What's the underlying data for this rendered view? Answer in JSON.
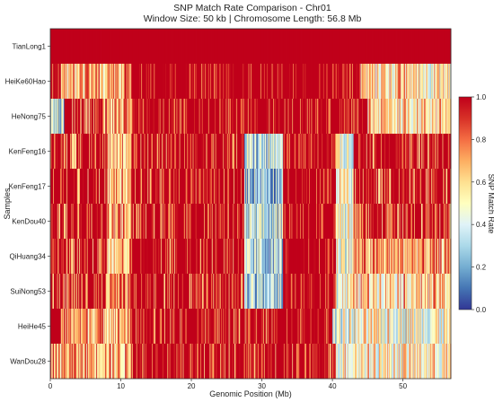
{
  "chart_data": {
    "type": "heatmap",
    "title": "SNP Match Rate Comparison - Chr01",
    "subtitle": "Window Size: 50 kb | Chromosome Length: 56.8 Mb",
    "xlabel": "Genomic Position (Mb)",
    "ylabel": "Samples",
    "xlim": [
      0,
      56.8
    ],
    "xticks": [
      "0",
      "10",
      "20",
      "30",
      "40",
      "50"
    ],
    "x_tick_values": [
      0,
      10,
      20,
      30,
      40,
      50
    ],
    "samples": [
      "TianLong1",
      "HeiKe60Hao",
      "HeNong75",
      "KenFeng16",
      "KenFeng17",
      "KenDou40",
      "QiHuang34",
      "SuiNong53",
      "HeiHe45",
      "WanDou28"
    ],
    "colorbar": {
      "label": "SNP Match Rate",
      "range": [
        0.0,
        1.0
      ],
      "ticks": [
        "0.0",
        "0.2",
        "0.4",
        "0.6",
        "0.8",
        "1.0"
      ],
      "tick_values": [
        0.0,
        0.2,
        0.4,
        0.6,
        0.8,
        1.0
      ],
      "colormap": [
        "#313695",
        "#4575b4",
        "#74add1",
        "#abd9e9",
        "#e0f3f8",
        "#ffffbf",
        "#fee090",
        "#fdae61",
        "#f46d43",
        "#d73027",
        "#c0001a"
      ]
    },
    "segments": [
      {
        "sample": "TianLong1",
        "regions": [
          {
            "start": 0,
            "end": 56.8,
            "match": 1.0
          }
        ]
      },
      {
        "sample": "HeiKe60Hao",
        "regions": [
          {
            "start": 0,
            "end": 1.5,
            "match": 0.95
          },
          {
            "start": 1.5,
            "end": 8.0,
            "match": 0.65
          },
          {
            "start": 8.0,
            "end": 11.5,
            "match": 0.72
          },
          {
            "start": 11.5,
            "end": 44.0,
            "match": 0.97
          },
          {
            "start": 44.0,
            "end": 52.0,
            "match": 0.6
          },
          {
            "start": 52.0,
            "end": 56.8,
            "match": 0.55
          }
        ]
      },
      {
        "sample": "HeNong75",
        "regions": [
          {
            "start": 0,
            "end": 2.0,
            "match": 0.35
          },
          {
            "start": 2.0,
            "end": 8.0,
            "match": 0.78
          },
          {
            "start": 8.0,
            "end": 11.5,
            "match": 0.7
          },
          {
            "start": 11.5,
            "end": 45.0,
            "match": 0.93
          },
          {
            "start": 45.0,
            "end": 56.8,
            "match": 0.6
          }
        ]
      },
      {
        "sample": "KenFeng16",
        "regions": [
          {
            "start": 0,
            "end": 8.0,
            "match": 0.8
          },
          {
            "start": 8.0,
            "end": 11.5,
            "match": 0.7
          },
          {
            "start": 11.5,
            "end": 27.5,
            "match": 0.85
          },
          {
            "start": 27.5,
            "end": 33.0,
            "match": 0.3
          },
          {
            "start": 33.0,
            "end": 40.5,
            "match": 0.97
          },
          {
            "start": 40.5,
            "end": 43.0,
            "match": 0.5
          },
          {
            "start": 43.0,
            "end": 56.8,
            "match": 0.82
          }
        ]
      },
      {
        "sample": "KenFeng17",
        "regions": [
          {
            "start": 0,
            "end": 8.0,
            "match": 0.8
          },
          {
            "start": 8.0,
            "end": 11.5,
            "match": 0.7
          },
          {
            "start": 11.5,
            "end": 27.5,
            "match": 0.85
          },
          {
            "start": 27.5,
            "end": 33.0,
            "match": 0.3
          },
          {
            "start": 33.0,
            "end": 40.5,
            "match": 0.97
          },
          {
            "start": 40.5,
            "end": 43.0,
            "match": 0.5
          },
          {
            "start": 43.0,
            "end": 56.8,
            "match": 0.8
          }
        ]
      },
      {
        "sample": "KenDou40",
        "regions": [
          {
            "start": 0,
            "end": 8.0,
            "match": 0.8
          },
          {
            "start": 8.0,
            "end": 11.5,
            "match": 0.7
          },
          {
            "start": 11.5,
            "end": 27.5,
            "match": 0.85
          },
          {
            "start": 27.5,
            "end": 33.0,
            "match": 0.3
          },
          {
            "start": 33.0,
            "end": 40.5,
            "match": 0.97
          },
          {
            "start": 40.5,
            "end": 43.0,
            "match": 0.5
          },
          {
            "start": 43.0,
            "end": 56.8,
            "match": 0.8
          }
        ]
      },
      {
        "sample": "QiHuang34",
        "regions": [
          {
            "start": 0,
            "end": 8.0,
            "match": 0.78
          },
          {
            "start": 8.0,
            "end": 11.5,
            "match": 0.7
          },
          {
            "start": 11.5,
            "end": 27.5,
            "match": 0.85
          },
          {
            "start": 27.5,
            "end": 33.0,
            "match": 0.3
          },
          {
            "start": 33.0,
            "end": 40.5,
            "match": 0.97
          },
          {
            "start": 40.5,
            "end": 43.0,
            "match": 0.5
          },
          {
            "start": 43.0,
            "end": 56.8,
            "match": 0.7
          }
        ]
      },
      {
        "sample": "SuiNong53",
        "regions": [
          {
            "start": 0,
            "end": 8.0,
            "match": 0.78
          },
          {
            "start": 8.0,
            "end": 11.5,
            "match": 0.7
          },
          {
            "start": 11.5,
            "end": 27.5,
            "match": 0.85
          },
          {
            "start": 27.5,
            "end": 33.0,
            "match": 0.3
          },
          {
            "start": 33.0,
            "end": 40.5,
            "match": 0.97
          },
          {
            "start": 40.5,
            "end": 43.0,
            "match": 0.5
          },
          {
            "start": 43.0,
            "end": 56.8,
            "match": 0.62
          }
        ]
      },
      {
        "sample": "HeiHe45",
        "regions": [
          {
            "start": 0,
            "end": 1.5,
            "match": 1.0
          },
          {
            "start": 1.5,
            "end": 8.0,
            "match": 0.72
          },
          {
            "start": 8.0,
            "end": 11.5,
            "match": 0.7
          },
          {
            "start": 11.5,
            "end": 33.0,
            "match": 0.85
          },
          {
            "start": 33.0,
            "end": 40.0,
            "match": 0.97
          },
          {
            "start": 40.0,
            "end": 44.0,
            "match": 0.45
          },
          {
            "start": 44.0,
            "end": 56.8,
            "match": 0.5
          }
        ]
      },
      {
        "sample": "WanDou28",
        "regions": [
          {
            "start": 0,
            "end": 8.0,
            "match": 0.72
          },
          {
            "start": 8.0,
            "end": 11.5,
            "match": 0.68
          },
          {
            "start": 11.5,
            "end": 40.5,
            "match": 0.85
          },
          {
            "start": 40.5,
            "end": 43.0,
            "match": 0.55
          },
          {
            "start": 43.0,
            "end": 56.8,
            "match": 0.55
          }
        ]
      }
    ]
  }
}
